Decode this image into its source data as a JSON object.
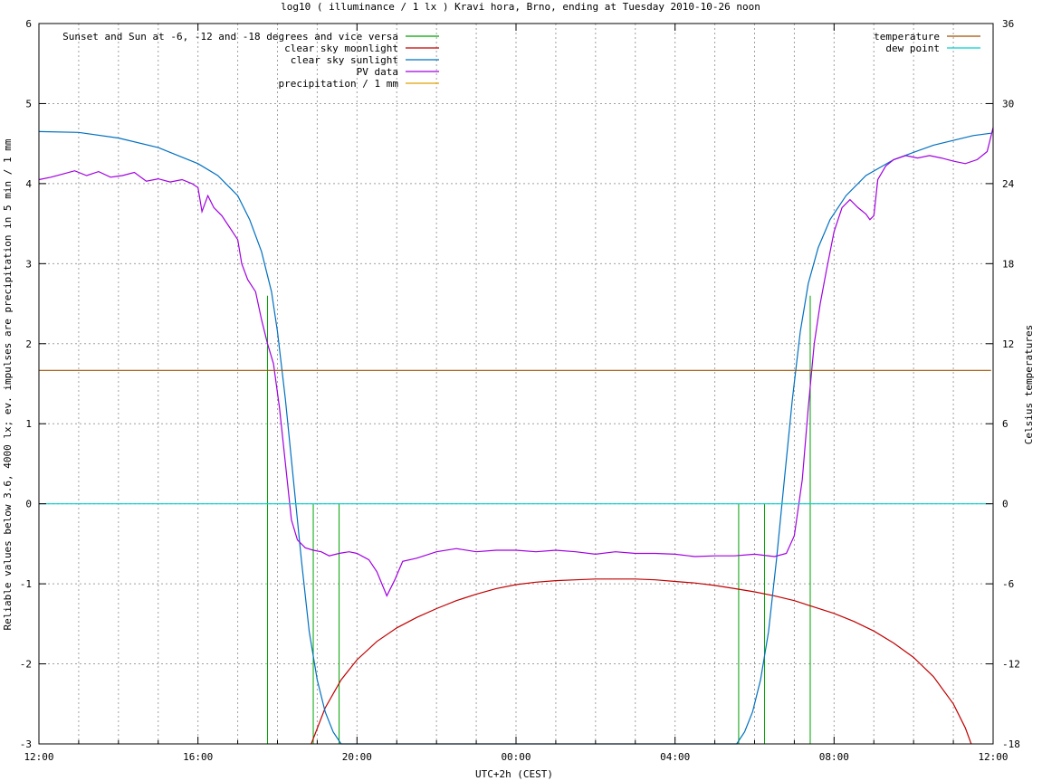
{
  "chart_data": {
    "type": "line",
    "title": "log10 ( illuminance / 1 lx ) Kravi hora, Brno, ending at Tuesday 2010-10-26 noon",
    "xlabel": "UTC+2h (CEST)",
    "ylabel": "Reliable values below 3.6, 4000 lx; ev. impulses are precipitation in 5 min / 1 mm",
    "y2label": "Celsius temperatures",
    "xlim": [
      12,
      36
    ],
    "ylim": [
      -3,
      6
    ],
    "y2lim": [
      -18,
      36
    ],
    "grid": true,
    "legend_left": "top-left",
    "legend_right": "top-right",
    "x_ticks": [
      {
        "v": 12,
        "label": "12:00"
      },
      {
        "v": 16,
        "label": "16:00"
      },
      {
        "v": 20,
        "label": "20:00"
      },
      {
        "v": 24,
        "label": "00:00"
      },
      {
        "v": 28,
        "label": "04:00"
      },
      {
        "v": 32,
        "label": "08:00"
      },
      {
        "v": 36,
        "label": "12:00"
      }
    ],
    "y_ticks": [
      {
        "v": -3,
        "label": "-3"
      },
      {
        "v": -2,
        "label": "-2"
      },
      {
        "v": -1,
        "label": "-1"
      },
      {
        "v": 0,
        "label": "0"
      },
      {
        "v": 1,
        "label": "1"
      },
      {
        "v": 2,
        "label": "2"
      },
      {
        "v": 3,
        "label": "3"
      },
      {
        "v": 4,
        "label": "4"
      },
      {
        "v": 5,
        "label": "5"
      },
      {
        "v": 6,
        "label": "6"
      }
    ],
    "y2_ticks": [
      {
        "v": -18,
        "label": "-18"
      },
      {
        "v": -12,
        "label": "-12"
      },
      {
        "v": -6,
        "label": "-6"
      },
      {
        "v": 0,
        "label": "0"
      },
      {
        "v": 6,
        "label": "6"
      },
      {
        "v": 12,
        "label": "12"
      },
      {
        "v": 18,
        "label": "18"
      },
      {
        "v": 24,
        "label": "24"
      },
      {
        "v": 30,
        "label": "30"
      },
      {
        "v": 36,
        "label": "36"
      }
    ],
    "series": [
      {
        "name": "Sunset and Sun at -6, -12 and -18 degrees and vice versa",
        "color": "#00a000",
        "style": "impulses",
        "legend": "left",
        "points": [
          {
            "x": 17.75,
            "y": 2.6
          },
          {
            "x": 18.9,
            "y": 0
          },
          {
            "x": 19.55,
            "y": 0
          },
          {
            "x": 31.4,
            "y": 2.6
          },
          {
            "x": 30.25,
            "y": 0
          },
          {
            "x": 29.6,
            "y": 0
          }
        ]
      },
      {
        "name": "clear sky moonlight",
        "color": "#c00000",
        "axis": "y",
        "legend": "left",
        "points": [
          [
            18.85,
            -3.0
          ],
          [
            19.2,
            -2.55
          ],
          [
            19.6,
            -2.2
          ],
          [
            20.0,
            -1.95
          ],
          [
            20.5,
            -1.72
          ],
          [
            21.0,
            -1.55
          ],
          [
            21.5,
            -1.42
          ],
          [
            22.0,
            -1.31
          ],
          [
            22.5,
            -1.21
          ],
          [
            23.0,
            -1.13
          ],
          [
            23.5,
            -1.06
          ],
          [
            24.0,
            -1.01
          ],
          [
            24.5,
            -0.98
          ],
          [
            25.0,
            -0.96
          ],
          [
            25.5,
            -0.95
          ],
          [
            26.0,
            -0.94
          ],
          [
            26.5,
            -0.94
          ],
          [
            27.0,
            -0.94
          ],
          [
            27.5,
            -0.95
          ],
          [
            28.0,
            -0.97
          ],
          [
            28.5,
            -0.99
          ],
          [
            29.0,
            -1.02
          ],
          [
            29.5,
            -1.06
          ],
          [
            30.0,
            -1.1
          ],
          [
            30.5,
            -1.15
          ],
          [
            31.0,
            -1.21
          ],
          [
            31.5,
            -1.29
          ],
          [
            32.0,
            -1.37
          ],
          [
            32.5,
            -1.47
          ],
          [
            33.0,
            -1.59
          ],
          [
            33.5,
            -1.74
          ],
          [
            34.0,
            -1.92
          ],
          [
            34.5,
            -2.16
          ],
          [
            35.0,
            -2.5
          ],
          [
            35.3,
            -2.8
          ],
          [
            35.45,
            -3.0
          ]
        ]
      },
      {
        "name": "clear sky sunlight",
        "color": "#0070c0",
        "axis": "y",
        "legend": "left",
        "points": [
          [
            12.0,
            4.65
          ],
          [
            13.0,
            4.64
          ],
          [
            14.0,
            4.57
          ],
          [
            15.0,
            4.45
          ],
          [
            16.0,
            4.25
          ],
          [
            16.5,
            4.1
          ],
          [
            17.0,
            3.85
          ],
          [
            17.3,
            3.55
          ],
          [
            17.6,
            3.15
          ],
          [
            17.85,
            2.65
          ],
          [
            18.0,
            2.15
          ],
          [
            18.2,
            1.3
          ],
          [
            18.4,
            0.3
          ],
          [
            18.6,
            -0.7
          ],
          [
            18.8,
            -1.6
          ],
          [
            19.0,
            -2.2
          ],
          [
            19.2,
            -2.6
          ],
          [
            19.4,
            -2.85
          ],
          [
            19.6,
            -3.0
          ],
          [
            29.55,
            -3.0
          ],
          [
            29.75,
            -2.85
          ],
          [
            29.95,
            -2.6
          ],
          [
            30.15,
            -2.2
          ],
          [
            30.35,
            -1.6
          ],
          [
            30.55,
            -0.7
          ],
          [
            30.75,
            0.3
          ],
          [
            30.95,
            1.3
          ],
          [
            31.15,
            2.15
          ],
          [
            31.35,
            2.75
          ],
          [
            31.6,
            3.2
          ],
          [
            31.9,
            3.55
          ],
          [
            32.3,
            3.85
          ],
          [
            32.8,
            4.1
          ],
          [
            33.5,
            4.3
          ],
          [
            34.5,
            4.48
          ],
          [
            35.5,
            4.6
          ],
          [
            35.95,
            4.63
          ]
        ]
      },
      {
        "name": "PV data",
        "color": "#a000e0",
        "axis": "y",
        "legend": "left",
        "points": [
          [
            12.0,
            4.05
          ],
          [
            12.3,
            4.08
          ],
          [
            12.6,
            4.12
          ],
          [
            12.9,
            4.16
          ],
          [
            13.2,
            4.1
          ],
          [
            13.5,
            4.15
          ],
          [
            13.8,
            4.08
          ],
          [
            14.1,
            4.1
          ],
          [
            14.4,
            4.14
          ],
          [
            14.7,
            4.03
          ],
          [
            15.0,
            4.06
          ],
          [
            15.3,
            4.02
          ],
          [
            15.6,
            4.05
          ],
          [
            15.85,
            4.0
          ],
          [
            16.0,
            3.95
          ],
          [
            16.1,
            3.65
          ],
          [
            16.25,
            3.85
          ],
          [
            16.4,
            3.7
          ],
          [
            16.6,
            3.6
          ],
          [
            16.8,
            3.45
          ],
          [
            17.0,
            3.3
          ],
          [
            17.1,
            3.0
          ],
          [
            17.25,
            2.8
          ],
          [
            17.45,
            2.65
          ],
          [
            17.6,
            2.3
          ],
          [
            17.75,
            2.0
          ],
          [
            17.9,
            1.75
          ],
          [
            18.05,
            1.2
          ],
          [
            18.2,
            0.5
          ],
          [
            18.35,
            -0.2
          ],
          [
            18.5,
            -0.45
          ],
          [
            18.7,
            -0.55
          ],
          [
            18.9,
            -0.58
          ],
          [
            19.1,
            -0.6
          ],
          [
            19.3,
            -0.65
          ],
          [
            19.55,
            -0.62
          ],
          [
            19.8,
            -0.6
          ],
          [
            20.0,
            -0.62
          ],
          [
            20.3,
            -0.7
          ],
          [
            20.5,
            -0.85
          ],
          [
            20.75,
            -1.15
          ],
          [
            20.95,
            -0.95
          ],
          [
            21.15,
            -0.72
          ],
          [
            21.5,
            -0.68
          ],
          [
            22.0,
            -0.6
          ],
          [
            22.5,
            -0.56
          ],
          [
            23.0,
            -0.6
          ],
          [
            23.5,
            -0.58
          ],
          [
            24.0,
            -0.58
          ],
          [
            24.5,
            -0.6
          ],
          [
            25.0,
            -0.58
          ],
          [
            25.5,
            -0.6
          ],
          [
            26.0,
            -0.63
          ],
          [
            26.5,
            -0.6
          ],
          [
            27.0,
            -0.62
          ],
          [
            27.5,
            -0.62
          ],
          [
            28.0,
            -0.63
          ],
          [
            28.5,
            -0.66
          ],
          [
            29.0,
            -0.65
          ],
          [
            29.5,
            -0.65
          ],
          [
            30.0,
            -0.63
          ],
          [
            30.5,
            -0.66
          ],
          [
            30.8,
            -0.62
          ],
          [
            31.0,
            -0.4
          ],
          [
            31.2,
            0.3
          ],
          [
            31.35,
            1.2
          ],
          [
            31.5,
            2.0
          ],
          [
            31.65,
            2.5
          ],
          [
            31.8,
            2.9
          ],
          [
            32.0,
            3.4
          ],
          [
            32.2,
            3.7
          ],
          [
            32.4,
            3.8
          ],
          [
            32.6,
            3.7
          ],
          [
            32.8,
            3.62
          ],
          [
            32.9,
            3.55
          ],
          [
            33.0,
            3.6
          ],
          [
            33.1,
            4.05
          ],
          [
            33.3,
            4.22
          ],
          [
            33.5,
            4.3
          ],
          [
            33.8,
            4.35
          ],
          [
            34.1,
            4.32
          ],
          [
            34.4,
            4.35
          ],
          [
            34.7,
            4.32
          ],
          [
            35.0,
            4.28
          ],
          [
            35.3,
            4.25
          ],
          [
            35.6,
            4.3
          ],
          [
            35.85,
            4.4
          ],
          [
            36.0,
            4.7
          ]
        ]
      },
      {
        "name": "precipitation / 1 mm",
        "color": "#e0a000",
        "axis": "y",
        "legend": "left",
        "points": []
      },
      {
        "name": "temperature",
        "color": "#a05000",
        "axis": "y2",
        "legend": "right",
        "points": [
          [
            12.0,
            10.0
          ],
          [
            35.95,
            10.0
          ]
        ]
      },
      {
        "name": "dew point",
        "color": "#00d0d0",
        "axis": "y2",
        "legend": "right",
        "points": [
          [
            12.0,
            0.0
          ],
          [
            35.95,
            0.0
          ]
        ]
      }
    ]
  }
}
